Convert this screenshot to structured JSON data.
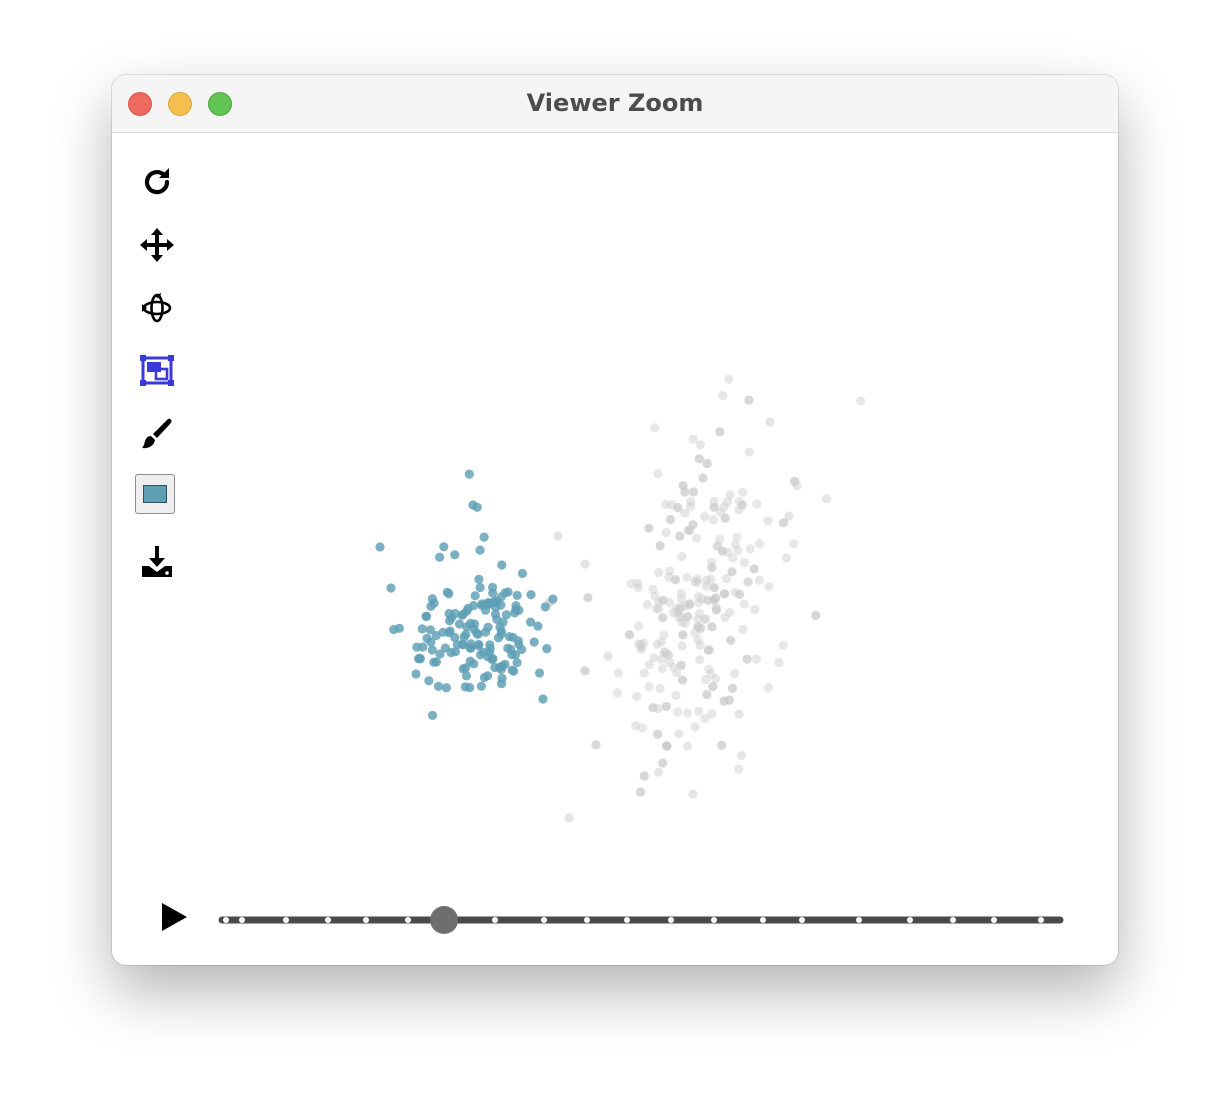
{
  "window": {
    "title": "Viewer Zoom"
  },
  "toolbar": {
    "items": [
      {
        "name": "reset-icon",
        "active": false
      },
      {
        "name": "pan-icon",
        "active": false
      },
      {
        "name": "rotate-icon",
        "active": false
      },
      {
        "name": "zoom-box-icon",
        "active": true
      },
      {
        "name": "brush-icon",
        "active": false
      },
      {
        "name": "color-swatch",
        "active": false
      },
      {
        "name": "download-icon",
        "active": false
      }
    ],
    "active_color": "#3a39d9",
    "swatch_color": "#5f9fb6"
  },
  "colors": {
    "selected_points": "#5e9fb5",
    "unselected_points": "#c9c9c9"
  },
  "playback": {
    "play_icon": "play-icon",
    "tick_count": 22,
    "current_index": 5,
    "progress": 0.265
  }
}
